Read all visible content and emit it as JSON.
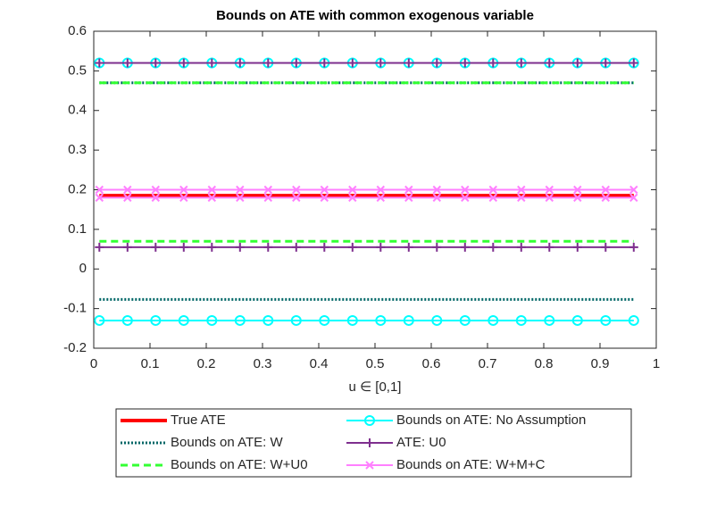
{
  "chart_data": {
    "type": "line",
    "title": "Bounds on ATE with common exogenous variable",
    "xlabel": "u ∈ [0,1]",
    "x": [
      0.01,
      0.06,
      0.11,
      0.16,
      0.21,
      0.26,
      0.31,
      0.36,
      0.41,
      0.46,
      0.51,
      0.56,
      0.61,
      0.66,
      0.71,
      0.76,
      0.81,
      0.86,
      0.91,
      0.96
    ],
    "xlim": [
      0,
      1
    ],
    "xticks": [
      0,
      0.1,
      0.2,
      0.3,
      0.4,
      0.5,
      0.6,
      0.7,
      0.8,
      0.9,
      1
    ],
    "ylim": [
      -0.2,
      0.6
    ],
    "yticks": [
      -0.2,
      -0.1,
      0,
      0.1,
      0.2,
      0.3,
      0.4,
      0.5,
      0.6
    ],
    "series": [
      {
        "name": "True ATE",
        "color": "#ff0000",
        "dash": "solid",
        "marker": "none",
        "width": 4,
        "values": [
          0.185,
          0.185,
          0.185,
          0.185,
          0.185,
          0.185,
          0.185,
          0.185,
          0.185,
          0.185,
          0.185,
          0.185,
          0.185,
          0.185,
          0.185,
          0.185,
          0.185,
          0.185,
          0.185,
          0.185
        ]
      },
      {
        "name": "Bounds on ATE: W",
        "color": "#006666",
        "dash": "dotted",
        "marker": "none",
        "width": 3,
        "values": [
          0.47,
          0.47,
          0.47,
          0.47,
          0.47,
          0.47,
          0.47,
          0.47,
          0.47,
          0.47,
          0.47,
          0.47,
          0.47,
          0.47,
          0.47,
          0.47,
          0.47,
          0.47,
          0.47,
          0.47
        ],
        "lower": [
          -0.077,
          -0.077,
          -0.077,
          -0.077,
          -0.077,
          -0.077,
          -0.077,
          -0.077,
          -0.077,
          -0.077,
          -0.077,
          -0.077,
          -0.077,
          -0.077,
          -0.077,
          -0.077,
          -0.077,
          -0.077,
          -0.077,
          -0.077
        ]
      },
      {
        "name": "Bounds on ATE: W+U0",
        "color": "#33ff33",
        "dash": "dashed",
        "marker": "none",
        "width": 3,
        "values": [
          0.47,
          0.47,
          0.47,
          0.47,
          0.47,
          0.47,
          0.47,
          0.47,
          0.47,
          0.47,
          0.47,
          0.47,
          0.47,
          0.47,
          0.47,
          0.47,
          0.47,
          0.47,
          0.47,
          0.47
        ],
        "lower": [
          0.07,
          0.07,
          0.07,
          0.07,
          0.07,
          0.07,
          0.07,
          0.07,
          0.07,
          0.07,
          0.07,
          0.07,
          0.07,
          0.07,
          0.07,
          0.07,
          0.07,
          0.07,
          0.07,
          0.07
        ]
      },
      {
        "name": "Bounds on ATE: No Assumption",
        "color": "#00ffff",
        "dash": "solid",
        "marker": "circle",
        "width": 2,
        "values": [
          0.52,
          0.52,
          0.52,
          0.52,
          0.52,
          0.52,
          0.52,
          0.52,
          0.52,
          0.52,
          0.52,
          0.52,
          0.52,
          0.52,
          0.52,
          0.52,
          0.52,
          0.52,
          0.52,
          0.52
        ],
        "lower": [
          -0.13,
          -0.13,
          -0.13,
          -0.13,
          -0.13,
          -0.13,
          -0.13,
          -0.13,
          -0.13,
          -0.13,
          -0.13,
          -0.13,
          -0.13,
          -0.13,
          -0.13,
          -0.13,
          -0.13,
          -0.13,
          -0.13,
          -0.13
        ]
      },
      {
        "name": "ATE: U0",
        "color": "#7e2f8e",
        "dash": "solid",
        "marker": "plus",
        "width": 2,
        "values": [
          0.52,
          0.52,
          0.52,
          0.52,
          0.52,
          0.52,
          0.52,
          0.52,
          0.52,
          0.52,
          0.52,
          0.52,
          0.52,
          0.52,
          0.52,
          0.52,
          0.52,
          0.52,
          0.52,
          0.52
        ],
        "lower": [
          0.055,
          0.055,
          0.055,
          0.055,
          0.055,
          0.055,
          0.055,
          0.055,
          0.055,
          0.055,
          0.055,
          0.055,
          0.055,
          0.055,
          0.055,
          0.055,
          0.055,
          0.055,
          0.055,
          0.055
        ]
      },
      {
        "name": "Bounds on ATE: W+M+C",
        "color": "#ff80ff",
        "dash": "solid",
        "marker": "x",
        "width": 2,
        "values": [
          0.2,
          0.2,
          0.2,
          0.2,
          0.2,
          0.2,
          0.2,
          0.2,
          0.2,
          0.2,
          0.2,
          0.2,
          0.2,
          0.2,
          0.2,
          0.2,
          0.2,
          0.2,
          0.2,
          0.2
        ],
        "lower": [
          0.18,
          0.18,
          0.18,
          0.18,
          0.18,
          0.18,
          0.18,
          0.18,
          0.18,
          0.18,
          0.18,
          0.18,
          0.18,
          0.18,
          0.18,
          0.18,
          0.18,
          0.18,
          0.18,
          0.18
        ]
      }
    ]
  }
}
